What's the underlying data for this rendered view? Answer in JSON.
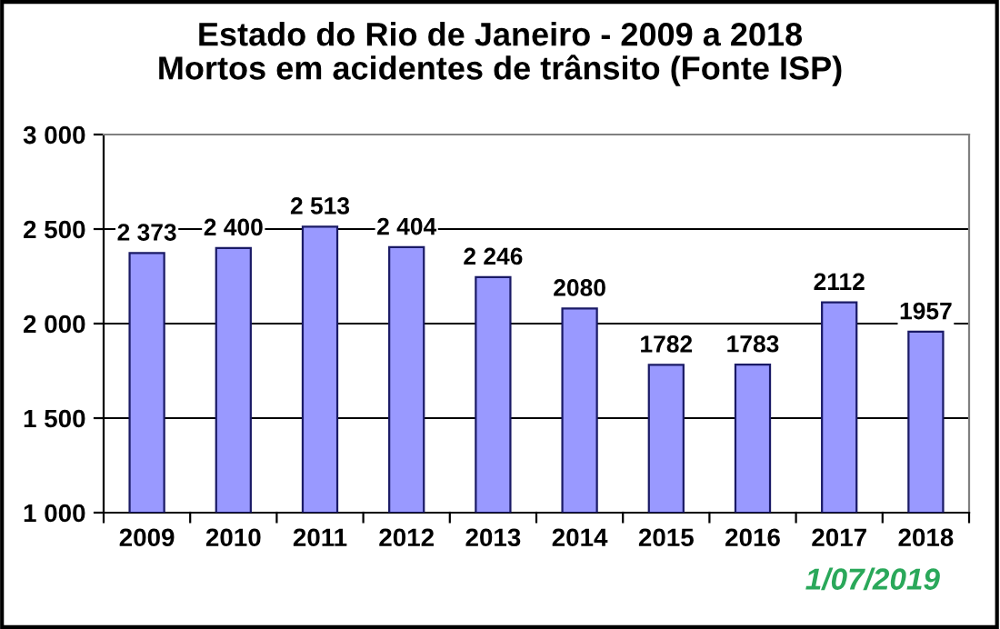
{
  "chart_data": {
    "type": "bar",
    "title": "Estado do Rio de Janeiro - 2009 a 2018\nMortos em acidentes de trânsito (Fonte ISP)",
    "categories": [
      "2009",
      "2010",
      "2011",
      "2012",
      "2013",
      "2014",
      "2015",
      "2016",
      "2017",
      "2018"
    ],
    "values": [
      2373,
      2400,
      2513,
      2404,
      2246,
      2080,
      1782,
      1783,
      2112,
      1957
    ],
    "value_labels": [
      "2 373",
      "2 400",
      "2 513",
      "2 404",
      "2 246",
      "2080",
      "1782",
      "1783",
      "2112",
      "1957"
    ],
    "color": "#9999ff",
    "ylim": [
      1000,
      3000
    ],
    "yticks": [
      {
        "value": 1000,
        "label": "1 000"
      },
      {
        "value": 1500,
        "label": "1 500"
      },
      {
        "value": 2000,
        "label": "2 000"
      },
      {
        "value": 2500,
        "label": "2 500"
      },
      {
        "value": 3000,
        "label": "3 000"
      }
    ],
    "grid": "y",
    "legend": false,
    "annotations": [
      "1/07/2019"
    ]
  }
}
